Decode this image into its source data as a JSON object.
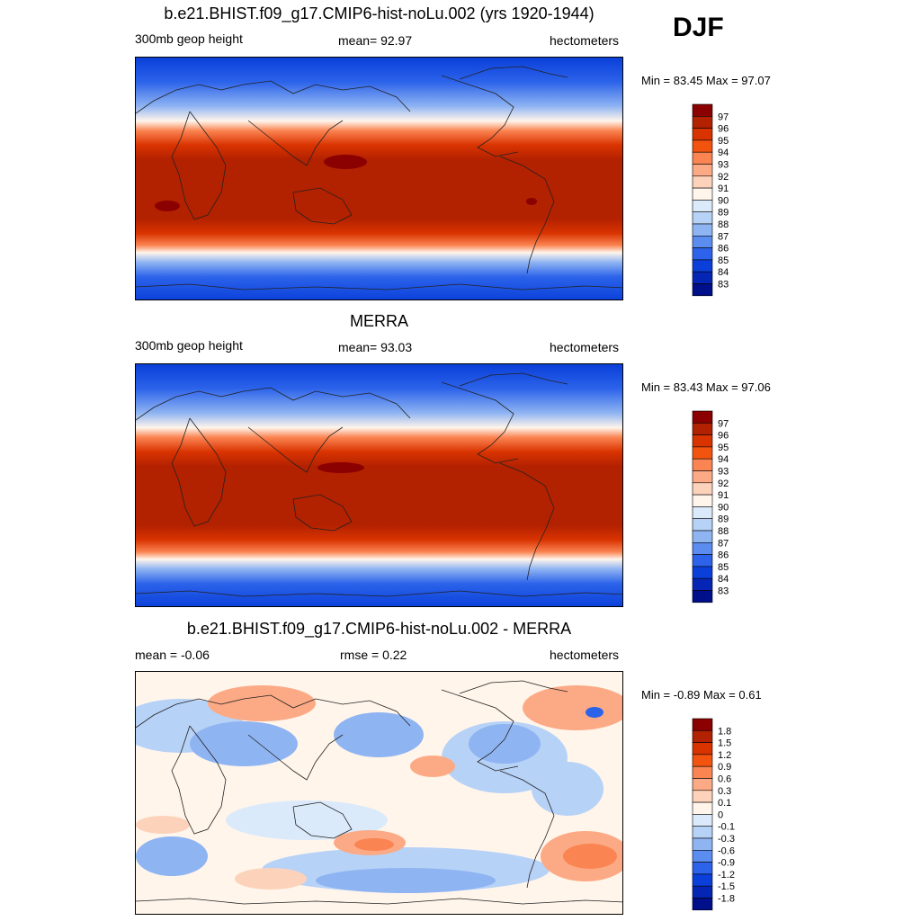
{
  "season": "DJF",
  "chart_data": [
    {
      "type": "heatmap",
      "title": "b.e21.BHIST.f09_g17.CMIP6-hist-noLu.002 (yrs 1920-1944)",
      "left_label": "300mb geop height",
      "center_label": "mean=  92.97",
      "right_label": "hectometers",
      "minmax": "Min =  83.45 Max =  97.07",
      "min": 83.45,
      "max": 97.07,
      "mean": 92.97,
      "colorbar_levels": [
        "97",
        "96",
        "95",
        "94",
        "93",
        "92",
        "91",
        "90",
        "89",
        "88",
        "87",
        "86",
        "85",
        "84",
        "83"
      ],
      "colorbar_colors": [
        "#8b0000",
        "#b22100",
        "#d93300",
        "#f2540f",
        "#fa8452",
        "#fcaa85",
        "#fdd2bb",
        "#fff5eb",
        "#dbeafb",
        "#b7d2f7",
        "#8fb4f2",
        "#5b8cf0",
        "#2c63ea",
        "#0a3fd9",
        "#0526b4",
        "#000f8a"
      ]
    },
    {
      "type": "heatmap",
      "title": "MERRA",
      "left_label": "300mb geop height",
      "center_label": "mean=  93.03",
      "right_label": "hectometers",
      "minmax": "Min =  83.43 Max =  97.06",
      "min": 83.43,
      "max": 97.06,
      "mean": 93.03,
      "colorbar_levels": [
        "97",
        "96",
        "95",
        "94",
        "93",
        "92",
        "91",
        "90",
        "89",
        "88",
        "87",
        "86",
        "85",
        "84",
        "83"
      ],
      "colorbar_colors": [
        "#8b0000",
        "#b22100",
        "#d93300",
        "#f2540f",
        "#fa8452",
        "#fcaa85",
        "#fdd2bb",
        "#fff5eb",
        "#dbeafb",
        "#b7d2f7",
        "#8fb4f2",
        "#5b8cf0",
        "#2c63ea",
        "#0a3fd9",
        "#0526b4",
        "#000f8a"
      ]
    },
    {
      "type": "heatmap",
      "title": "b.e21.BHIST.f09_g17.CMIP6-hist-noLu.002 - MERRA",
      "left_label": "mean =  -0.06",
      "center_label": "rmse =   0.22",
      "right_label": "hectometers",
      "minmax": "Min =  -0.89 Max =   0.61",
      "min": -0.89,
      "max": 0.61,
      "mean": -0.06,
      "rmse": 0.22,
      "colorbar_levels": [
        "1.8",
        "1.5",
        "1.2",
        "0.9",
        "0.6",
        "0.3",
        "0.1",
        "0",
        "-0.1",
        "-0.3",
        "-0.6",
        "-0.9",
        "-1.2",
        "-1.5",
        "-1.8"
      ],
      "colorbar_colors": [
        "#8b0000",
        "#b22100",
        "#d93300",
        "#f2540f",
        "#fa8452",
        "#fcaa85",
        "#fdd2bb",
        "#fff5eb",
        "#dbeafb",
        "#b7d2f7",
        "#8fb4f2",
        "#5b8cf0",
        "#2c63ea",
        "#0a3fd9",
        "#0526b4",
        "#000f8a"
      ]
    }
  ]
}
